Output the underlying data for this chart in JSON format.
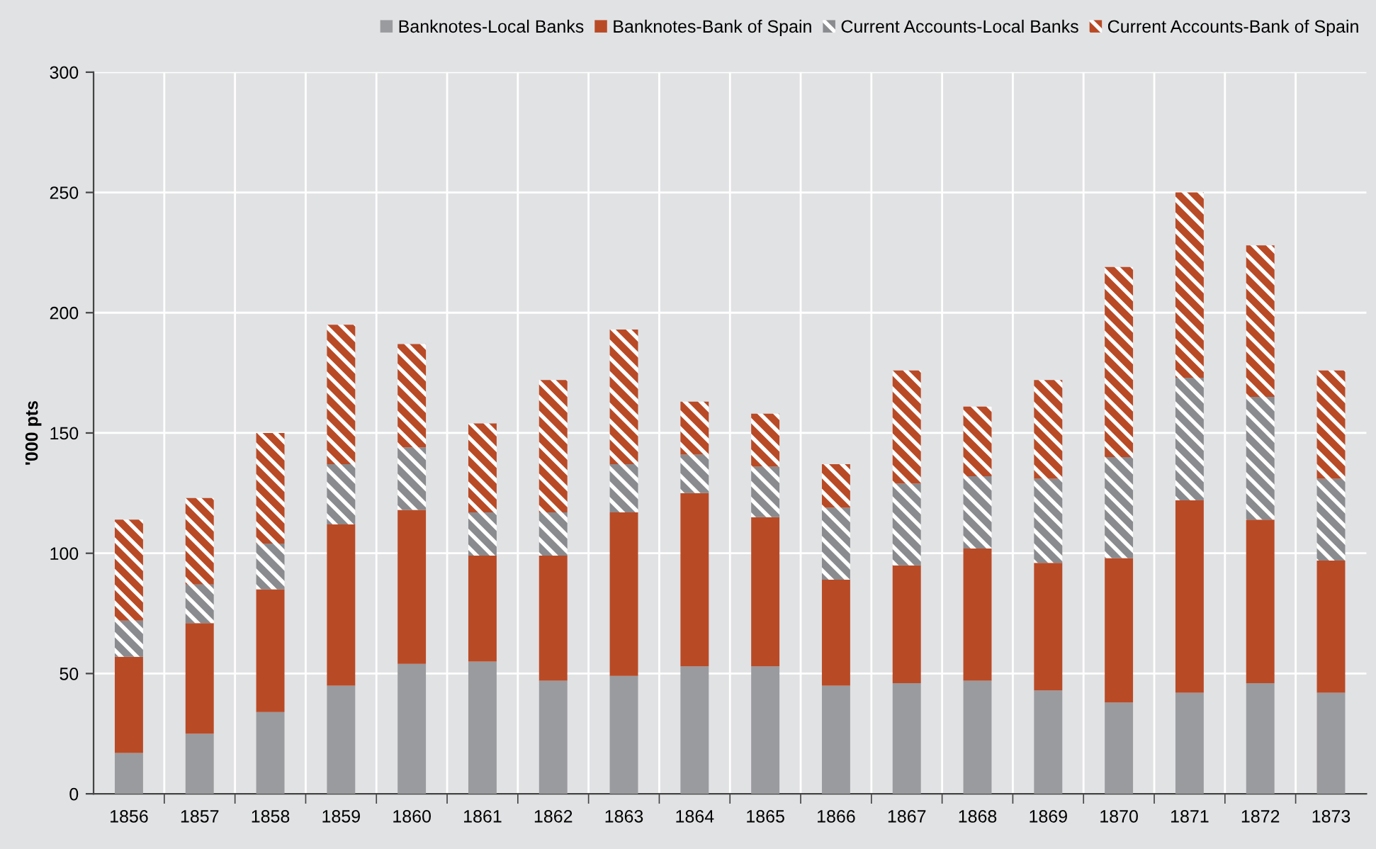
{
  "chart_data": {
    "type": "bar",
    "stacked": true,
    "ylabel": "'000 pts",
    "categories": [
      "1856",
      "1857",
      "1858",
      "1859",
      "1860",
      "1861",
      "1862",
      "1863",
      "1864",
      "1865",
      "1866",
      "1867",
      "1868",
      "1869",
      "1870",
      "1871",
      "1872",
      "1873"
    ],
    "series": [
      {
        "name": "Banknotes-Local Banks",
        "color": "#9a9b9e",
        "values": [
          17,
          25,
          34,
          45,
          54,
          55,
          47,
          49,
          53,
          53,
          45,
          46,
          47,
          43,
          38,
          42,
          46,
          42
        ]
      },
      {
        "name": "Banknotes-Bank of Spain",
        "color": "#b94a26",
        "values": [
          40,
          46,
          51,
          67,
          64,
          44,
          52,
          68,
          72,
          62,
          44,
          49,
          55,
          53,
          60,
          80,
          68,
          55
        ]
      },
      {
        "name": "Current Accounts-Local Banks",
        "color": "#8a8b8e",
        "values": [
          15,
          16,
          19,
          25,
          26,
          18,
          18,
          20,
          16,
          21,
          30,
          34,
          30,
          35,
          42,
          51,
          51,
          34
        ]
      },
      {
        "name": "Current Accounts-Bank of Spain",
        "color": "#b94a26",
        "values": [
          42,
          36,
          46,
          58,
          43,
          37,
          55,
          56,
          22,
          22,
          18,
          47,
          29,
          41,
          79,
          77,
          63,
          45
        ]
      }
    ],
    "ylim": [
      0,
      300
    ],
    "yticks": [
      0,
      50,
      100,
      150,
      200,
      250,
      300
    ],
    "grid": true,
    "legend": "top right"
  }
}
